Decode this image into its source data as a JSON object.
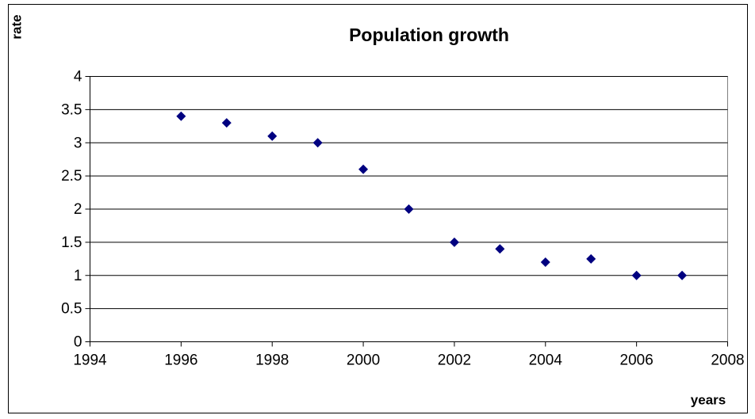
{
  "chart_data": {
    "type": "scatter",
    "title": "Population growth",
    "x_label": "years",
    "y_label": "rate",
    "x": [
      1996,
      1997,
      1998,
      1999,
      2000,
      2001,
      2002,
      2003,
      2004,
      2005,
      2006,
      2007
    ],
    "values": [
      3.4,
      3.3,
      3.1,
      3.0,
      2.6,
      2.0,
      1.5,
      1.4,
      1.2,
      1.25,
      1.0,
      1.0
    ],
    "color": "#000080",
    "xlim": [
      1994,
      2008
    ],
    "xticks": [
      1994,
      1996,
      1998,
      2000,
      2002,
      2004,
      2006,
      2008
    ],
    "ylim": [
      0,
      4
    ],
    "yticks": [
      0,
      0.5,
      1,
      1.5,
      2,
      2.5,
      3,
      3.5,
      4
    ],
    "grid": true
  }
}
